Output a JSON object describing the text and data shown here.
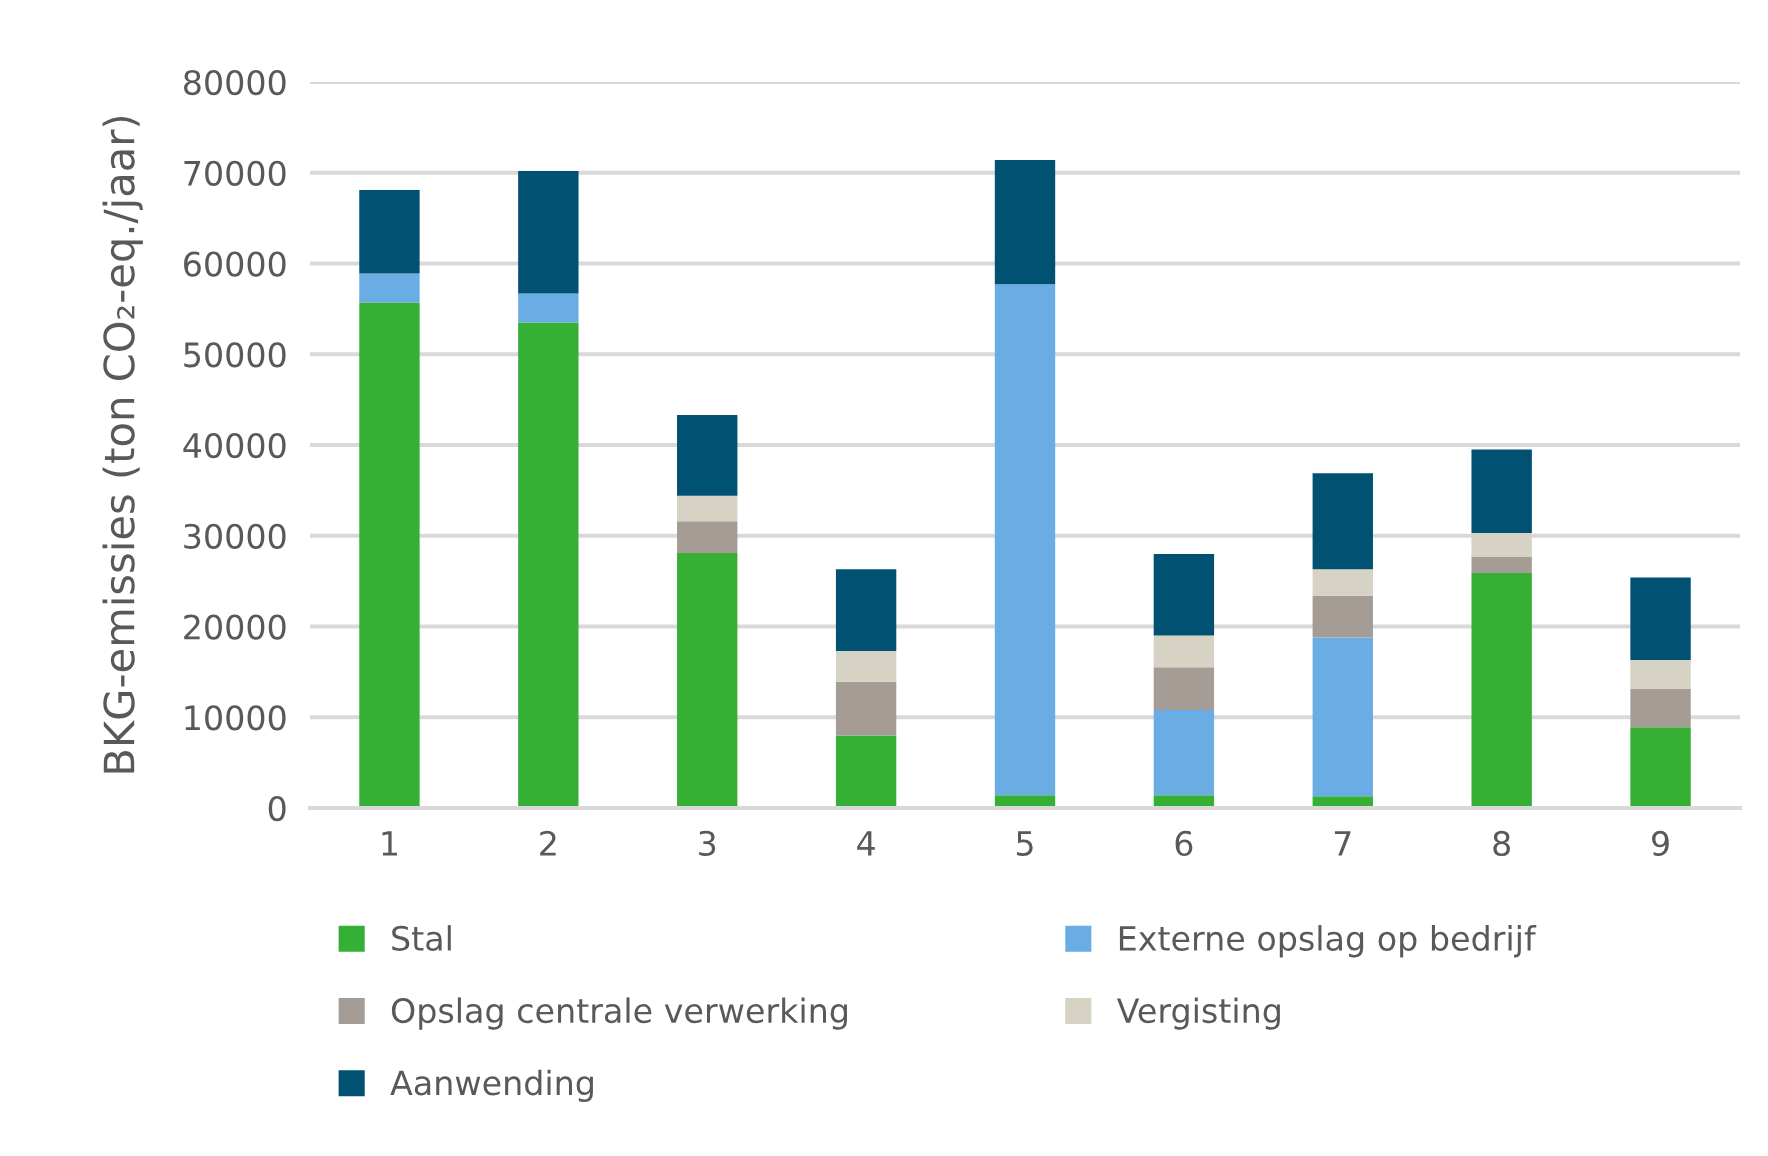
{
  "chart_data": {
    "type": "bar",
    "stacked": true,
    "ylabel": "BKG-emissies (ton CO₂-eq./jaar)",
    "categories": [
      "1",
      "2",
      "3",
      "4",
      "5",
      "6",
      "7",
      "8",
      "9"
    ],
    "series": [
      {
        "name": "Stal",
        "color": "#35b034",
        "values": [
          55700,
          53500,
          28100,
          8000,
          1400,
          1400,
          1300,
          25900,
          8900
        ]
      },
      {
        "name": "Externe opslag op bedrijf",
        "color": "#6aade4",
        "values": [
          3200,
          3200,
          null,
          null,
          56300,
          9400,
          17500,
          null,
          null
        ]
      },
      {
        "name": "Opslag centrale verwerking",
        "color": "#a59d95",
        "values": [
          null,
          null,
          3500,
          5900,
          null,
          4700,
          4600,
          1800,
          4200
        ]
      },
      {
        "name": "Vergisting",
        "color": "#d6d2c4",
        "values": [
          null,
          null,
          2800,
          3400,
          null,
          3500,
          2900,
          2600,
          3200
        ]
      },
      {
        "name": "Aanwending",
        "color": "#005172",
        "values": [
          9200,
          13500,
          8900,
          9000,
          13700,
          9000,
          10600,
          9200,
          9100
        ]
      }
    ],
    "ylim": [
      0,
      80000
    ],
    "yticks": [
      0,
      10000,
      20000,
      30000,
      40000,
      50000,
      60000,
      70000,
      80000
    ],
    "grid": "y",
    "legend": "bottom"
  }
}
